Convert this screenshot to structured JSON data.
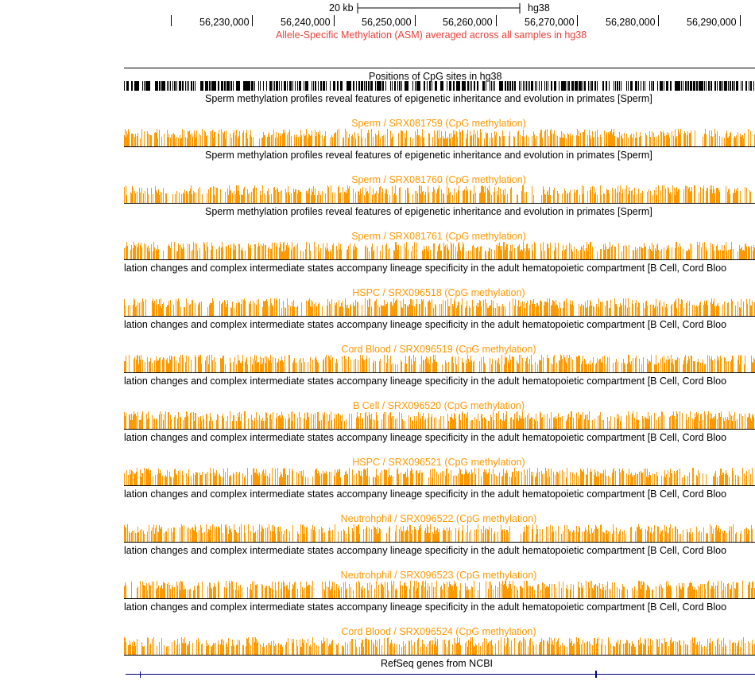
{
  "scale_bar": {
    "label": "20 kb",
    "assembly": "hg38"
  },
  "ruler": {
    "ticks": [
      "56,230,000",
      "56,240,000",
      "56,250,000",
      "56,260,000",
      "56,270,000",
      "56,280,000",
      "56,290,000"
    ]
  },
  "asm_title": "Allele-Specific Methylation (ASM) averaged across all samples in hg38",
  "cpg_track": {
    "label": "Positions of CpG sites in hg38"
  },
  "tracks": [
    {
      "group": "Sperm methylation profiles reveal features of epigenetic inheritance and evolution in primates [Sperm]",
      "name": "Sperm / SRX081759 (CpG methylation)"
    },
    {
      "group": "Sperm methylation profiles reveal features of epigenetic inheritance and evolution in primates [Sperm]",
      "name": "Sperm / SRX081760 (CpG methylation)"
    },
    {
      "group": "Sperm methylation profiles reveal features of epigenetic inheritance and evolution in primates [Sperm]",
      "name": "Sperm / SRX081761 (CpG methylation)"
    },
    {
      "group": "lation changes and complex intermediate states accompany lineage specificity in the adult hematopoietic compartment [B Cell, Cord Bloo",
      "name": "HSPC / SRX096518 (CpG methylation)"
    },
    {
      "group": "lation changes and complex intermediate states accompany lineage specificity in the adult hematopoietic compartment [B Cell, Cord Bloo",
      "name": "Cord Blood / SRX096519 (CpG methylation)"
    },
    {
      "group": "lation changes and complex intermediate states accompany lineage specificity in the adult hematopoietic compartment [B Cell, Cord Bloo",
      "name": "B Cell / SRX096520 (CpG methylation)"
    },
    {
      "group": "lation changes and complex intermediate states accompany lineage specificity in the adult hematopoietic compartment [B Cell, Cord Bloo",
      "name": "HSPC / SRX096521 (CpG methylation)"
    },
    {
      "group": "lation changes and complex intermediate states accompany lineage specificity in the adult hematopoietic compartment [B Cell, Cord Bloo",
      "name": "Neutrohphil / SRX096522 (CpG methylation)"
    },
    {
      "group": "lation changes and complex intermediate states accompany lineage specificity in the adult hematopoietic compartment [B Cell, Cord Bloo",
      "name": "Neutrohphil / SRX096523 (CpG methylation)"
    },
    {
      "group": "lation changes and complex intermediate states accompany lineage specificity in the adult hematopoietic compartment [B Cell, Cord Bloo",
      "name": "Cord Blood / SRX096524 (CpG methylation)"
    }
  ],
  "refseq": {
    "label": "RefSeq genes from NCBI"
  },
  "colors": {
    "methylation": "#ff9900",
    "asm_title": "#e8423c",
    "cpg": "#000000",
    "gene": "#000080"
  }
}
